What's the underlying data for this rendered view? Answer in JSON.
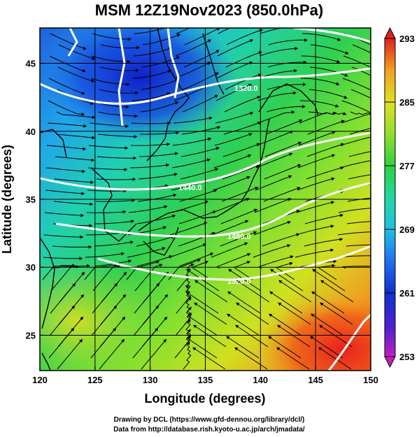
{
  "title": "MSM 12Z19Nov2023 (850.0hPa)",
  "xlabel": "Longitude (degrees)",
  "ylabel": "Latitude  (degrees)",
  "x_ticks": [
    {
      "value": 120,
      "label": "120"
    },
    {
      "value": 125,
      "label": "125"
    },
    {
      "value": 130,
      "label": "130"
    },
    {
      "value": 135,
      "label": "135"
    },
    {
      "value": 140,
      "label": "140"
    },
    {
      "value": 145,
      "label": "145"
    },
    {
      "value": 150,
      "label": "150"
    }
  ],
  "y_ticks": [
    {
      "value": 25,
      "label": "25"
    },
    {
      "value": 30,
      "label": "30"
    },
    {
      "value": 35,
      "label": "35"
    },
    {
      "value": 40,
      "label": "40"
    },
    {
      "value": 45,
      "label": "45"
    }
  ],
  "colorbar": {
    "labels": [
      {
        "value": 293,
        "label": "293"
      },
      {
        "value": 285,
        "label": "285"
      },
      {
        "value": 277,
        "label": "277"
      },
      {
        "value": 269,
        "label": "269"
      },
      {
        "value": 261,
        "label": "261"
      },
      {
        "value": 253,
        "label": "253"
      }
    ],
    "min": 253,
    "max": 293,
    "colors": [
      "#c020c0",
      "#5020d0",
      "#1030d0",
      "#2070f0",
      "#20c0e0",
      "#20d8a0",
      "#30d040",
      "#90e030",
      "#e0e020",
      "#f0a020",
      "#f05010",
      "#e02020"
    ]
  },
  "contours": [
    {
      "label": "1320.0"
    },
    {
      "label": "1440.0"
    },
    {
      "label": "1480.0"
    },
    {
      "label": "1520.0"
    }
  ],
  "credits": {
    "line1": "Drawing by DCL (https://www.gfd-dennou.org/library/dcl/)",
    "line2": "Data from http://database.rish.kyoto-u.ac.jp/arch/jmadata/"
  },
  "chart_data": {
    "type": "heatmap",
    "title": "MSM 12Z19Nov2023 (850.0hPa)",
    "xlabel": "Longitude (degrees)",
    "ylabel": "Latitude  (degrees)",
    "xlim": [
      120,
      150
    ],
    "ylim": [
      22.4,
      47.6
    ],
    "colorbar_range": [
      253,
      293
    ],
    "grid": true
  }
}
